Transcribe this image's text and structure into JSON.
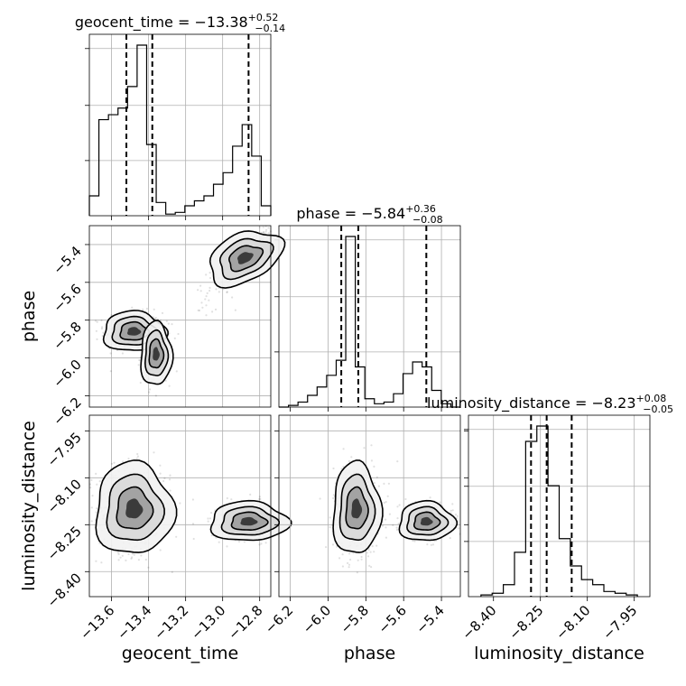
{
  "chart_data": {
    "type": "corner",
    "parameters": [
      {
        "name": "geocent_time",
        "title_main": "geocent_time = −13.38",
        "title_sup": "+0.52",
        "title_sub": "−0.14",
        "range": [
          -13.72,
          -12.74
        ],
        "ticks": [
          {
            "value": -13.6,
            "label": "−13.6"
          },
          {
            "value": -13.4,
            "label": "−13.4"
          },
          {
            "value": -13.2,
            "label": "−13.2"
          },
          {
            "value": -13.0,
            "label": "−13.0"
          },
          {
            "value": -12.8,
            "label": "−12.8"
          }
        ],
        "quantiles": [
          -13.52,
          -13.38,
          -12.86
        ],
        "hist_edges_range": [
          -13.72,
          -12.74
        ],
        "hist_counts": [
          0.12,
          0.58,
          0.61,
          0.65,
          0.78,
          1.03,
          0.43,
          0.08,
          0.01,
          0.02,
          0.06,
          0.09,
          0.12,
          0.19,
          0.26,
          0.42,
          0.55,
          0.36,
          0.06
        ]
      },
      {
        "name": "phase",
        "title_main": "phase = −5.84",
        "title_sup": "+0.36",
        "title_sub": "−0.08",
        "range": [
          -6.26,
          -5.3
        ],
        "ticks": [
          {
            "value": -6.2,
            "label": "−6.2"
          },
          {
            "value": -6.0,
            "label": "−6.0"
          },
          {
            "value": -5.8,
            "label": "−5.8"
          },
          {
            "value": -5.6,
            "label": "−5.6"
          },
          {
            "value": -5.4,
            "label": "−5.4"
          }
        ],
        "quantiles": [
          -5.93,
          -5.84,
          -5.48
        ],
        "hist_edges_range": [
          -6.26,
          -5.3
        ],
        "hist_counts": [
          0.0,
          0.01,
          0.03,
          0.07,
          0.12,
          0.19,
          0.28,
          1.02,
          0.24,
          0.05,
          0.02,
          0.03,
          0.08,
          0.2,
          0.27,
          0.24,
          0.1,
          0.02,
          0.0
        ]
      },
      {
        "name": "luminosity_distance",
        "title_main": "luminosity_distance = −8.23",
        "title_sup": "+0.08",
        "title_sub": "−0.05",
        "range": [
          -8.48,
          -7.9
        ],
        "ticks": [
          {
            "value": -8.4,
            "label": "−8.40"
          },
          {
            "value": -8.25,
            "label": "−8.25"
          },
          {
            "value": -8.1,
            "label": "−8.10"
          },
          {
            "value": -7.95,
            "label": "−7.95"
          }
        ],
        "quantiles": [
          -8.28,
          -8.23,
          -8.15
        ],
        "hist_edges_range": [
          -8.44,
          -7.94
        ],
        "hist_counts": [
          0.01,
          0.02,
          0.07,
          0.26,
          0.91,
          1.0,
          0.65,
          0.34,
          0.18,
          0.1,
          0.07,
          0.03,
          0.02,
          0.01
        ]
      }
    ],
    "density_modes": [
      {
        "x": "geocent_time",
        "y": "phase",
        "clusters": [
          {
            "cx": -13.48,
            "cy": -5.86,
            "sx": 0.08,
            "sy": 0.05,
            "w": 0.45
          },
          {
            "cx": -13.36,
            "cy": -5.98,
            "sx": 0.04,
            "sy": 0.08,
            "w": 0.2
          },
          {
            "cx": -12.88,
            "cy": -5.47,
            "sx": 0.1,
            "sy": 0.06,
            "w": 0.35
          }
        ]
      },
      {
        "x": "geocent_time",
        "y": "luminosity_distance",
        "clusters": [
          {
            "cx": -13.48,
            "cy": -8.2,
            "sx": 0.1,
            "sy": 0.07,
            "w": 0.65
          },
          {
            "cx": -12.86,
            "cy": -8.24,
            "sx": 0.1,
            "sy": 0.03,
            "w": 0.35
          }
        ]
      },
      {
        "x": "phase",
        "y": "luminosity_distance",
        "clusters": [
          {
            "cx": -5.85,
            "cy": -8.2,
            "sx": 0.06,
            "sy": 0.07,
            "w": 0.65
          },
          {
            "cx": -5.48,
            "cy": -8.24,
            "sx": 0.07,
            "sy": 0.03,
            "w": 0.35
          }
        ]
      }
    ],
    "quantile_line_style": "dashed",
    "grid": true
  }
}
